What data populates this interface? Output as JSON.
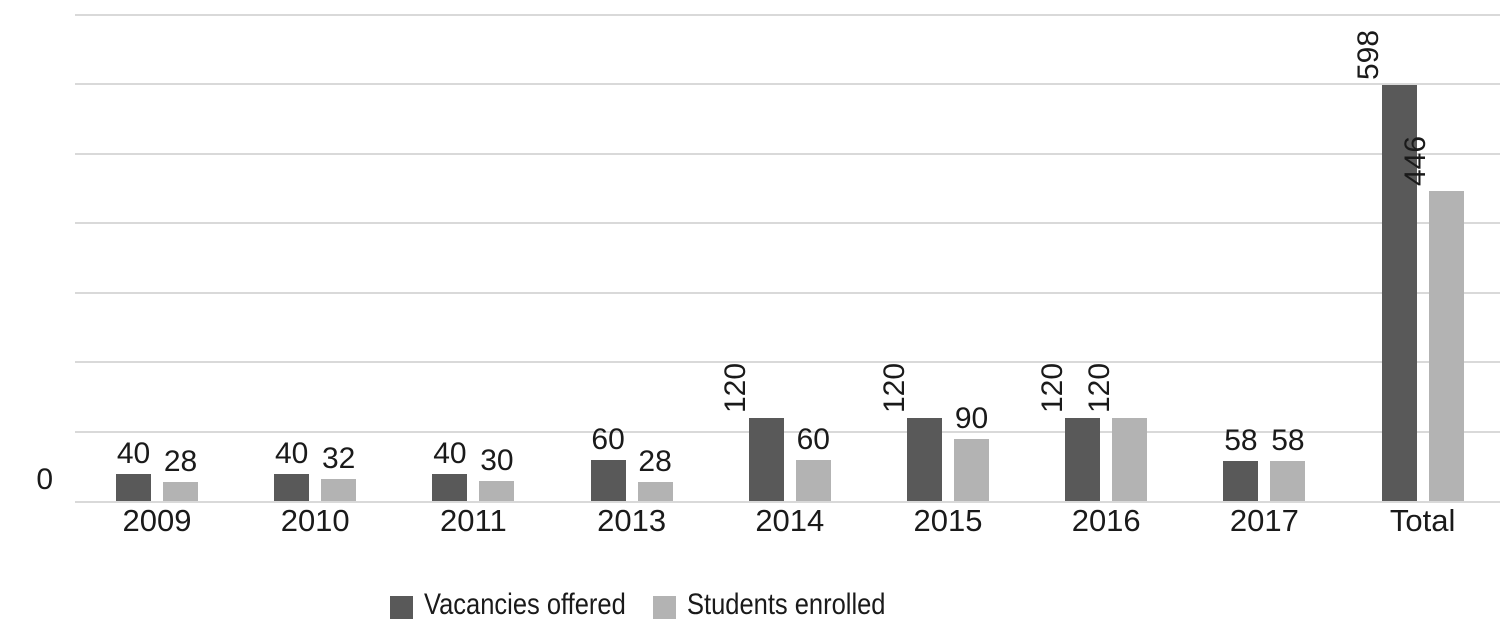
{
  "chart_data": {
    "type": "bar",
    "categories": [
      "2009",
      "2010",
      "2011",
      "2013",
      "2014",
      "2015",
      "2016",
      "2017",
      "Total"
    ],
    "series": [
      {
        "name": "Vacancies offered",
        "color": "#595959",
        "values": [
          40,
          40,
          40,
          60,
          120,
          120,
          120,
          58,
          598
        ]
      },
      {
        "name": "Students enrolled",
        "color": "#b3b3b3",
        "values": [
          28,
          32,
          30,
          28,
          60,
          90,
          120,
          58,
          446
        ]
      }
    ],
    "title": "",
    "xlabel": "",
    "ylabel": "",
    "ylim": [
      0,
      700
    ],
    "y_ticks": [
      0,
      100,
      200,
      300,
      400,
      500,
      600,
      700
    ],
    "grid": "horizontal",
    "gridline_color": "#d9d9d9",
    "text_color": "#1a1a1a",
    "background_color": "#ffffff",
    "legend_position": "bottom",
    "value_label_style": "outside end, rotated 90deg when value has 3 digits"
  }
}
